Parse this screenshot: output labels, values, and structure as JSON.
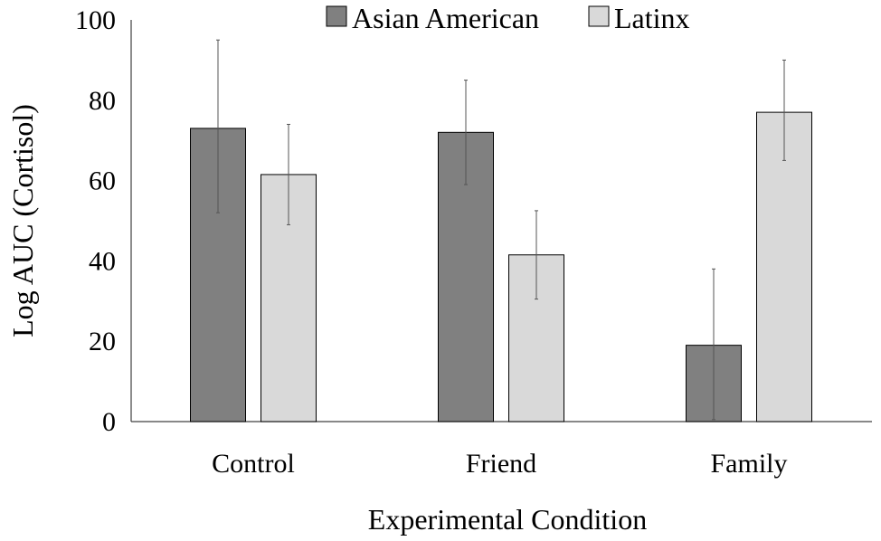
{
  "chart_data": {
    "type": "bar",
    "title": "",
    "xlabel": "Experimental Condition",
    "ylabel": "Log AUC (Cortisol)",
    "categories": [
      "Control",
      "Friend",
      "Family"
    ],
    "ylim": [
      0,
      100
    ],
    "yticks": [
      0,
      20,
      40,
      60,
      80,
      100
    ],
    "grid": false,
    "legend_position": "top",
    "series": [
      {
        "name": "Asian American",
        "color": "#808080",
        "values": [
          73,
          72,
          19
        ],
        "error_low": [
          52,
          59,
          0.5
        ],
        "error_high": [
          95,
          85,
          38
        ]
      },
      {
        "name": "Latinx",
        "color": "#d9d9d9",
        "values": [
          61.5,
          41.5,
          77
        ],
        "error_low": [
          49,
          30.5,
          65
        ],
        "error_high": [
          74,
          52.5,
          90
        ]
      }
    ]
  }
}
